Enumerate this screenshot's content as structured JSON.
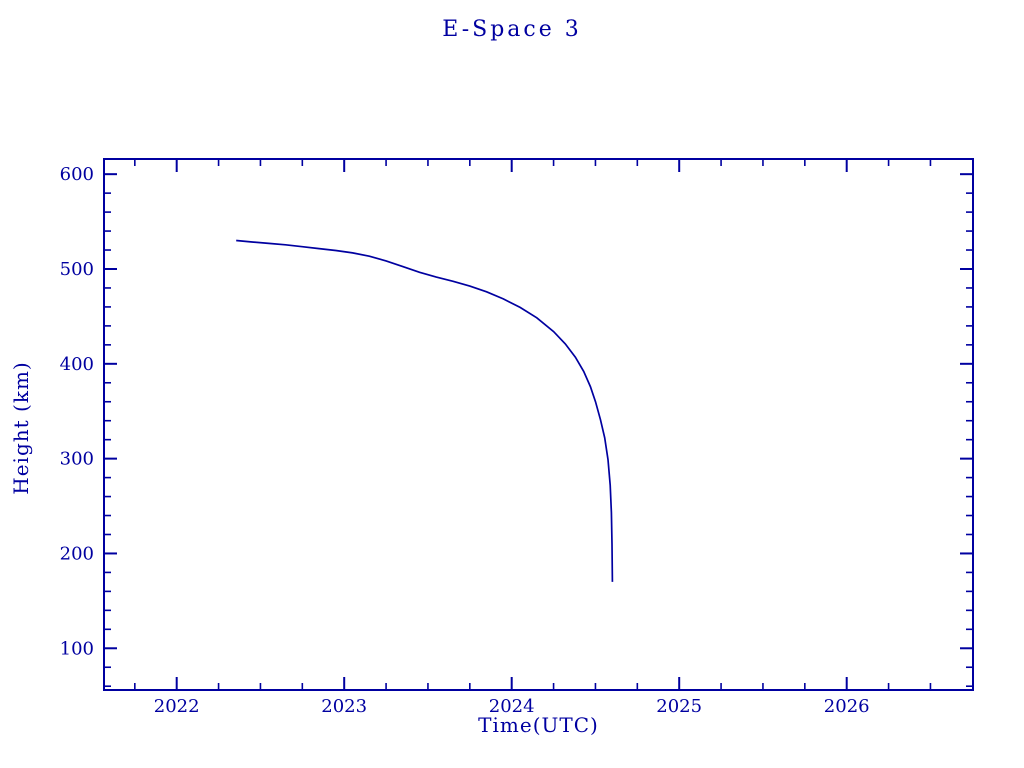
{
  "accent_color": "#0000a0",
  "background_color": "#ffffff",
  "chart_data": {
    "type": "line",
    "title": "E-Space 3",
    "xlabel": "Time(UTC)",
    "ylabel": "Height (km)",
    "xlim": [
      2021.566,
      2026.754
    ],
    "ylim": [
      56,
      616
    ],
    "x_major_ticks": [
      2022,
      2023,
      2024,
      2025,
      2026
    ],
    "x_tick_labels": [
      "2022",
      "2023",
      "2024",
      "2025",
      "2026"
    ],
    "x_minor_step": 0.25,
    "y_major_ticks": [
      100,
      200,
      300,
      400,
      500,
      600
    ],
    "y_tick_labels": [
      "100",
      "200",
      "300",
      "400",
      "500",
      "600"
    ],
    "y_minor_step": 20,
    "grid": false,
    "legend": "none",
    "line_color": "#0000a0",
    "series": [
      {
        "name": "E-Space 3",
        "points": [
          [
            2022.355,
            530
          ],
          [
            2022.45,
            528.5
          ],
          [
            2022.55,
            527
          ],
          [
            2022.65,
            525.5
          ],
          [
            2022.75,
            523.5
          ],
          [
            2022.85,
            521.5
          ],
          [
            2022.95,
            519.5
          ],
          [
            2023.05,
            517
          ],
          [
            2023.15,
            513.5
          ],
          [
            2023.25,
            508.5
          ],
          [
            2023.35,
            502.5
          ],
          [
            2023.45,
            496.5
          ],
          [
            2023.55,
            491.5
          ],
          [
            2023.65,
            487
          ],
          [
            2023.75,
            482
          ],
          [
            2023.85,
            476
          ],
          [
            2023.95,
            468.5
          ],
          [
            2024.05,
            459.5
          ],
          [
            2024.15,
            448.5
          ],
          [
            2024.25,
            434
          ],
          [
            2024.32,
            421
          ],
          [
            2024.38,
            407
          ],
          [
            2024.43,
            392
          ],
          [
            2024.47,
            376
          ],
          [
            2024.5,
            360
          ],
          [
            2024.53,
            341
          ],
          [
            2024.555,
            322
          ],
          [
            2024.575,
            299
          ],
          [
            2024.588,
            272
          ],
          [
            2024.595,
            243
          ],
          [
            2024.599,
            210
          ],
          [
            2024.601,
            170
          ]
        ]
      }
    ]
  }
}
